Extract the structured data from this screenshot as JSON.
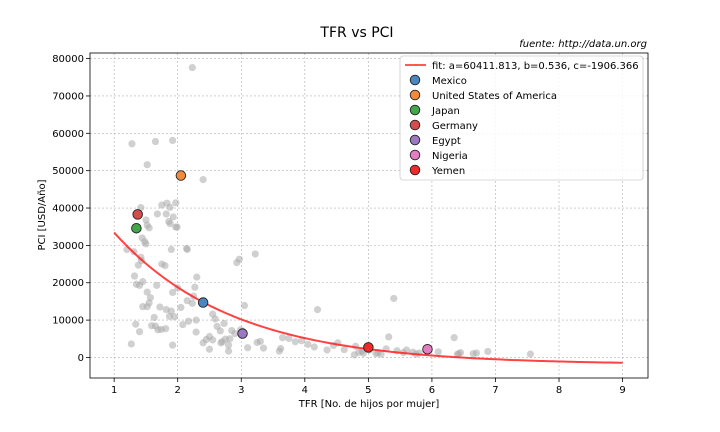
{
  "chart_data": {
    "type": "scatter",
    "title": "TFR vs PCI",
    "source_note": "fuente: http://data.un.org",
    "xlabel": "TFR [No. de hijos por mujer]",
    "ylabel": "PCI [USD/Año]",
    "xlim": [
      0.62,
      9.4
    ],
    "ylim": [
      -5500,
      81500
    ],
    "xticks": [
      1,
      2,
      3,
      4,
      5,
      6,
      7,
      8,
      9
    ],
    "yticks": [
      0,
      10000,
      20000,
      30000,
      40000,
      50000,
      60000,
      70000,
      80000
    ],
    "grid": true,
    "legend_position": "top-right",
    "fit": {
      "label": "fit: a=60411.813, b=0.536, c=-1906.366",
      "a": 60411.813,
      "b": 0.536,
      "c": -1906.366,
      "x_range": [
        1.0,
        9.0
      ],
      "color": "#ff2222"
    },
    "background_points": {
      "color": "#aaaaaa",
      "points": [
        [
          1.28,
          57200
        ],
        [
          1.52,
          51600
        ],
        [
          1.65,
          57800
        ],
        [
          1.92,
          58100
        ],
        [
          2.23,
          77600
        ],
        [
          2.4,
          47600
        ],
        [
          1.42,
          40100
        ],
        [
          1.5,
          36800
        ],
        [
          1.52,
          35400
        ],
        [
          1.55,
          34700
        ],
        [
          1.68,
          38400
        ],
        [
          1.75,
          40800
        ],
        [
          1.83,
          41300
        ],
        [
          1.88,
          40200
        ],
        [
          1.97,
          41400
        ],
        [
          1.93,
          37600
        ],
        [
          1.82,
          38400
        ],
        [
          1.86,
          36400
        ],
        [
          1.88,
          35800
        ],
        [
          1.97,
          34900
        ],
        [
          1.99,
          34900
        ],
        [
          1.44,
          32000
        ],
        [
          1.48,
          31000
        ],
        [
          1.5,
          30400
        ],
        [
          1.2,
          28900
        ],
        [
          1.31,
          28300
        ],
        [
          1.42,
          26800
        ],
        [
          1.43,
          25900
        ],
        [
          1.38,
          24700
        ],
        [
          1.9,
          28900
        ],
        [
          2.14,
          29200
        ],
        [
          2.15,
          28900
        ],
        [
          2.93,
          25400
        ],
        [
          2.97,
          26300
        ],
        [
          3.22,
          27700
        ],
        [
          1.32,
          21800
        ],
        [
          1.4,
          19300
        ],
        [
          1.35,
          19600
        ],
        [
          1.45,
          20300
        ],
        [
          1.52,
          17500
        ],
        [
          1.57,
          16000
        ],
        [
          1.55,
          14600
        ],
        [
          1.52,
          13600
        ],
        [
          1.67,
          19300
        ],
        [
          1.75,
          25000
        ],
        [
          1.8,
          24600
        ],
        [
          1.92,
          17400
        ],
        [
          2.0,
          18600
        ],
        [
          2.25,
          16400
        ],
        [
          2.27,
          18800
        ],
        [
          2.3,
          21500
        ],
        [
          2.15,
          15200
        ],
        [
          1.72,
          13500
        ],
        [
          1.82,
          12800
        ],
        [
          1.9,
          12400
        ],
        [
          1.95,
          10900
        ],
        [
          2.05,
          13400
        ],
        [
          1.63,
          10700
        ],
        [
          1.65,
          8400
        ],
        [
          1.59,
          8500
        ],
        [
          1.69,
          7400
        ],
        [
          1.74,
          7500
        ],
        [
          1.81,
          7700
        ],
        [
          1.87,
          11000
        ],
        [
          2.08,
          8800
        ],
        [
          2.17,
          9700
        ],
        [
          2.23,
          14500
        ],
        [
          2.29,
          10000
        ],
        [
          1.34,
          8900
        ],
        [
          1.27,
          3600
        ],
        [
          1.4,
          6900
        ],
        [
          1.92,
          3300
        ],
        [
          2.29,
          6800
        ],
        [
          2.4,
          3900
        ],
        [
          2.5,
          2200
        ],
        [
          2.45,
          4800
        ],
        [
          2.55,
          11600
        ],
        [
          2.59,
          10300
        ],
        [
          2.62,
          8300
        ],
        [
          2.67,
          7100
        ],
        [
          2.73,
          9100
        ],
        [
          2.75,
          4900
        ],
        [
          2.8,
          3300
        ],
        [
          2.82,
          5000
        ],
        [
          2.85,
          7200
        ],
        [
          2.9,
          6400
        ],
        [
          2.99,
          7400
        ],
        [
          3.05,
          13900
        ],
        [
          3.1,
          2600
        ],
        [
          3.25,
          4000
        ],
        [
          3.3,
          4300
        ],
        [
          3.35,
          2500
        ],
        [
          3.6,
          1700
        ],
        [
          3.62,
          2400
        ],
        [
          3.65,
          5300
        ],
        [
          3.75,
          5100
        ],
        [
          3.85,
          4200
        ],
        [
          3.95,
          4500
        ],
        [
          4.05,
          3500
        ],
        [
          4.15,
          2800
        ],
        [
          4.2,
          12800
        ],
        [
          4.35,
          2000
        ],
        [
          4.45,
          3200
        ],
        [
          4.52,
          3900
        ],
        [
          4.62,
          2100
        ],
        [
          4.8,
          3000
        ],
        [
          4.85,
          1400
        ],
        [
          4.9,
          1700
        ],
        [
          5.02,
          2000
        ],
        [
          5.15,
          1300
        ],
        [
          5.2,
          900
        ],
        [
          5.28,
          2300
        ],
        [
          5.32,
          5500
        ],
        [
          5.4,
          15800
        ],
        [
          5.45,
          1800
        ],
        [
          5.6,
          2000
        ],
        [
          5.7,
          1400
        ],
        [
          5.8,
          1200
        ],
        [
          6.1,
          1500
        ],
        [
          6.35,
          5300
        ],
        [
          6.4,
          800
        ],
        [
          6.45,
          1300
        ],
        [
          6.65,
          1000
        ],
        [
          6.7,
          1200
        ],
        [
          6.88,
          1600
        ],
        [
          7.55,
          900
        ],
        [
          2.55,
          4700
        ],
        [
          2.5,
          5600
        ],
        [
          2.7,
          4200
        ],
        [
          2.8,
          1700
        ],
        [
          4.92,
          1100
        ],
        [
          5.12,
          1000
        ],
        [
          5.55,
          1300
        ],
        [
          5.75,
          900
        ],
        [
          4.78,
          700
        ],
        [
          6.42,
          1000
        ],
        [
          1.45,
          13600
        ],
        [
          2.68,
          3900
        ]
      ]
    },
    "series": [
      {
        "name": "Mexico",
        "x": 2.4,
        "y": 14700,
        "color": "#4a86c0"
      },
      {
        "name": "United States of America",
        "x": 2.05,
        "y": 48700,
        "color": "#f08a3c"
      },
      {
        "name": "Japan",
        "x": 1.35,
        "y": 34600,
        "color": "#42a64a"
      },
      {
        "name": "Germany",
        "x": 1.37,
        "y": 38300,
        "color": "#d64c4c"
      },
      {
        "name": "Egypt",
        "x": 3.02,
        "y": 6400,
        "color": "#9a79c2"
      },
      {
        "name": "Nigeria",
        "x": 5.93,
        "y": 2200,
        "color": "#e57dc4"
      },
      {
        "name": "Yemen",
        "x": 5.0,
        "y": 2700,
        "color": "#ee2a2a"
      }
    ]
  }
}
